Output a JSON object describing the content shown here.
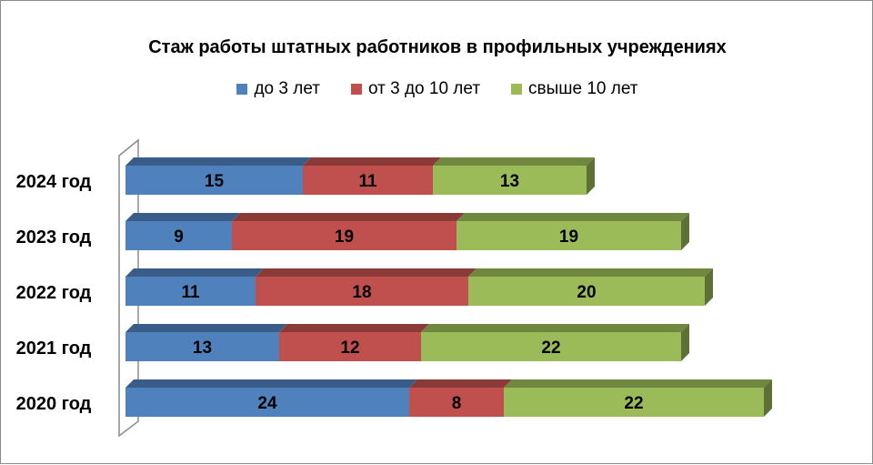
{
  "chart_data": {
    "type": "bar",
    "orientation": "horizontal",
    "stacked": true,
    "title": "Стаж работы  штатных работников в профильных учреждениях",
    "categories": [
      "2024 год",
      "2023 год",
      "2022 год",
      "2021 год",
      "2020 год"
    ],
    "series": [
      {
        "name": "до  3 лет",
        "color": "#4f81bd",
        "values": [
          15,
          9,
          11,
          13,
          24
        ]
      },
      {
        "name": "от 3 до 10 лет",
        "color": "#c0504d",
        "values": [
          11,
          19,
          18,
          12,
          8
        ]
      },
      {
        "name": "свыше 10 лет",
        "color": "#9bbb59",
        "values": [
          13,
          19,
          20,
          22,
          22
        ]
      }
    ],
    "legend_position": "top",
    "grid": false,
    "xlim": [
      0,
      55
    ]
  }
}
